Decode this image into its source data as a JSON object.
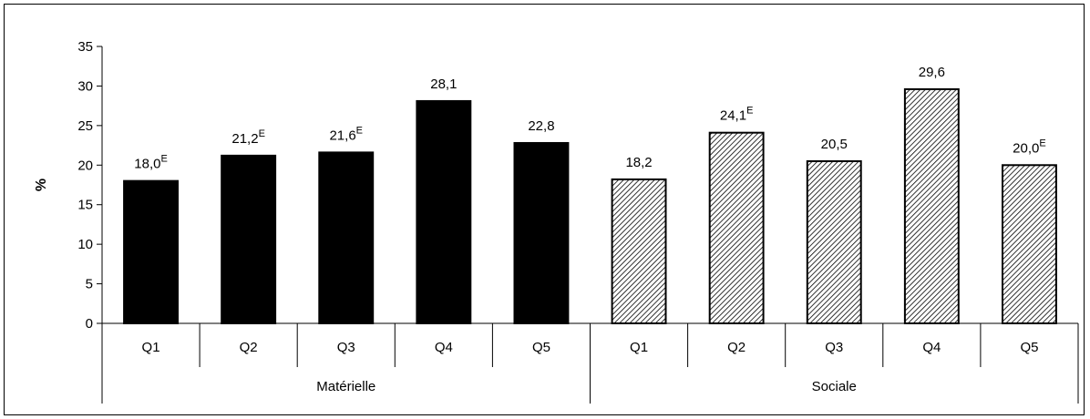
{
  "chart_data": {
    "type": "bar",
    "ylabel": "%",
    "ylim": [
      0,
      35
    ],
    "yticks": [
      0,
      5,
      10,
      15,
      20,
      25,
      30,
      35
    ],
    "groups": [
      {
        "name": "Matérielle",
        "pattern": "solid",
        "color": "#000000",
        "categories": [
          "Q1",
          "Q2",
          "Q3",
          "Q4",
          "Q5"
        ],
        "values": [
          18.0,
          21.2,
          21.6,
          28.1,
          22.8
        ],
        "labels": [
          "18,0",
          "21,2",
          "21,6",
          "28,1",
          "22,8"
        ],
        "flags": [
          "E",
          "E",
          "E",
          "",
          ""
        ]
      },
      {
        "name": "Sociale",
        "pattern": "diagonal-hatch",
        "color": "#000000",
        "categories": [
          "Q1",
          "Q2",
          "Q3",
          "Q4",
          "Q5"
        ],
        "values": [
          18.2,
          24.1,
          20.5,
          29.6,
          20.0
        ],
        "labels": [
          "18,2",
          "24,1",
          "20,5",
          "29,6",
          "20,0"
        ],
        "flags": [
          "",
          "E",
          "",
          "",
          "E"
        ]
      }
    ]
  }
}
